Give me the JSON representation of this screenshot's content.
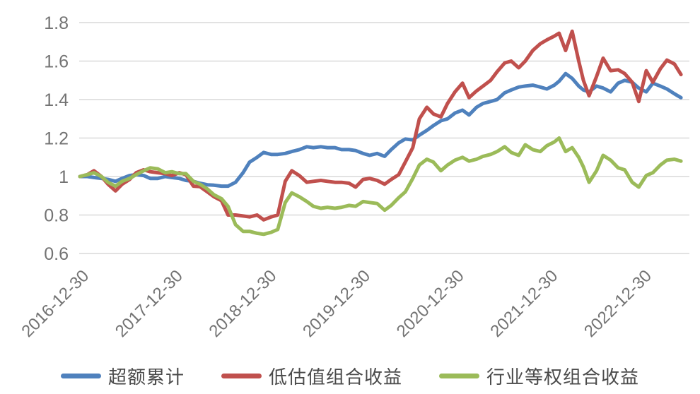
{
  "chart_data": {
    "type": "line",
    "title": "",
    "xlabel": "",
    "ylabel": "",
    "grid": true,
    "gridline_color": "#d9d9d9",
    "background_color": "#ffffff",
    "axis_text_color": "#737373",
    "legend_position": "bottom",
    "xlim": [
      2017.0,
      2023.5
    ],
    "ylim": [
      0.6,
      1.8
    ],
    "y_axis": {
      "ticks": [
        0.6,
        0.8,
        1.0,
        1.2,
        1.4,
        1.6,
        1.8
      ],
      "tick_labels": [
        "0.6",
        "0.8",
        "1",
        "1.2",
        "1.4",
        "1.6",
        "1.8"
      ]
    },
    "x_axis": {
      "tick_years": [
        2017,
        2018,
        2019,
        2020,
        2021,
        2022,
        2023
      ],
      "tick_labels": [
        "2016-12-30",
        "2017-12-30",
        "2018-12-30",
        "2019-12-30",
        "2020-12-30",
        "2021-12-30",
        "2022-12-30"
      ],
      "label_rotation_deg": -45
    },
    "series": [
      {
        "name": "超额累计",
        "color": "#4F81BD",
        "points": [
          [
            2017.0,
            1.0
          ],
          [
            2017.08,
            1.0
          ],
          [
            2017.15,
            0.995
          ],
          [
            2017.23,
            0.99
          ],
          [
            2017.3,
            0.985
          ],
          [
            2017.38,
            0.975
          ],
          [
            2017.45,
            0.99
          ],
          [
            2017.53,
            1.005
          ],
          [
            2017.6,
            1.01
          ],
          [
            2017.68,
            1.005
          ],
          [
            2017.75,
            0.99
          ],
          [
            2017.83,
            0.99
          ],
          [
            2017.91,
            1.0
          ],
          [
            2017.98,
            0.995
          ],
          [
            2018.06,
            0.99
          ],
          [
            2018.13,
            0.98
          ],
          [
            2018.21,
            0.975
          ],
          [
            2018.28,
            0.965
          ],
          [
            2018.36,
            0.957
          ],
          [
            2018.43,
            0.955
          ],
          [
            2018.51,
            0.95
          ],
          [
            2018.58,
            0.95
          ],
          [
            2018.66,
            0.97
          ],
          [
            2018.74,
            1.02
          ],
          [
            2018.81,
            1.075
          ],
          [
            2018.89,
            1.1
          ],
          [
            2018.96,
            1.125
          ],
          [
            2019.04,
            1.115
          ],
          [
            2019.11,
            1.115
          ],
          [
            2019.19,
            1.12
          ],
          [
            2019.26,
            1.13
          ],
          [
            2019.34,
            1.14
          ],
          [
            2019.42,
            1.155
          ],
          [
            2019.49,
            1.15
          ],
          [
            2019.57,
            1.155
          ],
          [
            2019.64,
            1.15
          ],
          [
            2019.72,
            1.15
          ],
          [
            2019.79,
            1.14
          ],
          [
            2019.87,
            1.14
          ],
          [
            2019.94,
            1.135
          ],
          [
            2020.02,
            1.12
          ],
          [
            2020.09,
            1.11
          ],
          [
            2020.17,
            1.12
          ],
          [
            2020.25,
            1.105
          ],
          [
            2020.32,
            1.14
          ],
          [
            2020.4,
            1.175
          ],
          [
            2020.47,
            1.195
          ],
          [
            2020.55,
            1.19
          ],
          [
            2020.62,
            1.215
          ],
          [
            2020.7,
            1.24
          ],
          [
            2020.77,
            1.265
          ],
          [
            2020.85,
            1.29
          ],
          [
            2020.92,
            1.3
          ],
          [
            2021.0,
            1.33
          ],
          [
            2021.08,
            1.345
          ],
          [
            2021.15,
            1.32
          ],
          [
            2021.23,
            1.36
          ],
          [
            2021.3,
            1.38
          ],
          [
            2021.38,
            1.39
          ],
          [
            2021.45,
            1.4
          ],
          [
            2021.53,
            1.435
          ],
          [
            2021.6,
            1.45
          ],
          [
            2021.68,
            1.465
          ],
          [
            2021.75,
            1.47
          ],
          [
            2021.83,
            1.475
          ],
          [
            2021.91,
            1.465
          ],
          [
            2021.98,
            1.455
          ],
          [
            2022.06,
            1.475
          ],
          [
            2022.11,
            1.495
          ],
          [
            2022.18,
            1.535
          ],
          [
            2022.25,
            1.51
          ],
          [
            2022.32,
            1.47
          ],
          [
            2022.37,
            1.45
          ],
          [
            2022.43,
            1.44
          ],
          [
            2022.51,
            1.47
          ],
          [
            2022.58,
            1.46
          ],
          [
            2022.66,
            1.44
          ],
          [
            2022.74,
            1.485
          ],
          [
            2022.81,
            1.5
          ],
          [
            2022.89,
            1.49
          ],
          [
            2022.96,
            1.46
          ],
          [
            2023.04,
            1.44
          ],
          [
            2023.11,
            1.485
          ],
          [
            2023.19,
            1.47
          ],
          [
            2023.26,
            1.455
          ],
          [
            2023.34,
            1.43
          ],
          [
            2023.41,
            1.41
          ]
        ]
      },
      {
        "name": "低估值组合收益",
        "color": "#C0504D",
        "points": [
          [
            2017.0,
            1.0
          ],
          [
            2017.08,
            1.01
          ],
          [
            2017.15,
            1.03
          ],
          [
            2017.23,
            1.0
          ],
          [
            2017.3,
            0.96
          ],
          [
            2017.38,
            0.925
          ],
          [
            2017.45,
            0.96
          ],
          [
            2017.53,
            0.985
          ],
          [
            2017.6,
            1.02
          ],
          [
            2017.68,
            1.035
          ],
          [
            2017.75,
            1.025
          ],
          [
            2017.83,
            1.02
          ],
          [
            2017.91,
            1.015
          ],
          [
            2017.98,
            1.005
          ],
          [
            2018.06,
            1.02
          ],
          [
            2018.13,
            1.01
          ],
          [
            2018.21,
            0.95
          ],
          [
            2018.28,
            0.948
          ],
          [
            2018.36,
            0.92
          ],
          [
            2018.43,
            0.895
          ],
          [
            2018.51,
            0.875
          ],
          [
            2018.58,
            0.8
          ],
          [
            2018.66,
            0.8
          ],
          [
            2018.74,
            0.795
          ],
          [
            2018.81,
            0.79
          ],
          [
            2018.89,
            0.8
          ],
          [
            2018.96,
            0.775
          ],
          [
            2019.04,
            0.79
          ],
          [
            2019.11,
            0.8
          ],
          [
            2019.19,
            0.975
          ],
          [
            2019.26,
            1.03
          ],
          [
            2019.34,
            1.005
          ],
          [
            2019.42,
            0.97
          ],
          [
            2019.49,
            0.975
          ],
          [
            2019.57,
            0.98
          ],
          [
            2019.64,
            0.975
          ],
          [
            2019.72,
            0.97
          ],
          [
            2019.79,
            0.97
          ],
          [
            2019.87,
            0.965
          ],
          [
            2019.94,
            0.945
          ],
          [
            2020.02,
            0.985
          ],
          [
            2020.09,
            0.99
          ],
          [
            2020.17,
            0.98
          ],
          [
            2020.25,
            0.96
          ],
          [
            2020.32,
            0.985
          ],
          [
            2020.4,
            1.01
          ],
          [
            2020.47,
            1.075
          ],
          [
            2020.55,
            1.15
          ],
          [
            2020.62,
            1.3
          ],
          [
            2020.7,
            1.36
          ],
          [
            2020.77,
            1.325
          ],
          [
            2020.85,
            1.31
          ],
          [
            2020.92,
            1.38
          ],
          [
            2021.0,
            1.44
          ],
          [
            2021.08,
            1.485
          ],
          [
            2021.15,
            1.41
          ],
          [
            2021.23,
            1.445
          ],
          [
            2021.3,
            1.47
          ],
          [
            2021.38,
            1.5
          ],
          [
            2021.45,
            1.545
          ],
          [
            2021.53,
            1.59
          ],
          [
            2021.6,
            1.6
          ],
          [
            2021.68,
            1.565
          ],
          [
            2021.75,
            1.6
          ],
          [
            2021.83,
            1.655
          ],
          [
            2021.91,
            1.69
          ],
          [
            2021.98,
            1.71
          ],
          [
            2022.06,
            1.73
          ],
          [
            2022.11,
            1.745
          ],
          [
            2022.18,
            1.655
          ],
          [
            2022.25,
            1.755
          ],
          [
            2022.32,
            1.6
          ],
          [
            2022.37,
            1.5
          ],
          [
            2022.43,
            1.42
          ],
          [
            2022.51,
            1.52
          ],
          [
            2022.58,
            1.615
          ],
          [
            2022.66,
            1.55
          ],
          [
            2022.74,
            1.555
          ],
          [
            2022.81,
            1.535
          ],
          [
            2022.89,
            1.49
          ],
          [
            2022.96,
            1.39
          ],
          [
            2023.04,
            1.55
          ],
          [
            2023.11,
            1.49
          ],
          [
            2023.19,
            1.56
          ],
          [
            2023.26,
            1.605
          ],
          [
            2023.34,
            1.585
          ],
          [
            2023.41,
            1.53
          ]
        ]
      },
      {
        "name": "行业等权组合收益",
        "color": "#9BBB59",
        "points": [
          [
            2017.0,
            1.0
          ],
          [
            2017.08,
            1.01
          ],
          [
            2017.15,
            1.02
          ],
          [
            2017.23,
            1.0
          ],
          [
            2017.3,
            0.97
          ],
          [
            2017.38,
            0.95
          ],
          [
            2017.45,
            0.975
          ],
          [
            2017.53,
            0.99
          ],
          [
            2017.6,
            1.01
          ],
          [
            2017.68,
            1.03
          ],
          [
            2017.75,
            1.045
          ],
          [
            2017.83,
            1.04
          ],
          [
            2017.91,
            1.02
          ],
          [
            2017.98,
            1.025
          ],
          [
            2018.06,
            1.015
          ],
          [
            2018.13,
            1.015
          ],
          [
            2018.21,
            0.975
          ],
          [
            2018.28,
            0.96
          ],
          [
            2018.36,
            0.935
          ],
          [
            2018.43,
            0.905
          ],
          [
            2018.51,
            0.885
          ],
          [
            2018.58,
            0.845
          ],
          [
            2018.66,
            0.75
          ],
          [
            2018.74,
            0.715
          ],
          [
            2018.81,
            0.715
          ],
          [
            2018.89,
            0.705
          ],
          [
            2018.96,
            0.7
          ],
          [
            2019.04,
            0.71
          ],
          [
            2019.11,
            0.725
          ],
          [
            2019.19,
            0.865
          ],
          [
            2019.26,
            0.915
          ],
          [
            2019.34,
            0.895
          ],
          [
            2019.42,
            0.87
          ],
          [
            2019.49,
            0.845
          ],
          [
            2019.57,
            0.835
          ],
          [
            2019.64,
            0.84
          ],
          [
            2019.72,
            0.835
          ],
          [
            2019.79,
            0.84
          ],
          [
            2019.87,
            0.85
          ],
          [
            2019.94,
            0.845
          ],
          [
            2020.02,
            0.87
          ],
          [
            2020.09,
            0.865
          ],
          [
            2020.17,
            0.86
          ],
          [
            2020.25,
            0.825
          ],
          [
            2020.32,
            0.85
          ],
          [
            2020.4,
            0.89
          ],
          [
            2020.47,
            0.92
          ],
          [
            2020.55,
            0.99
          ],
          [
            2020.62,
            1.06
          ],
          [
            2020.7,
            1.09
          ],
          [
            2020.77,
            1.075
          ],
          [
            2020.85,
            1.03
          ],
          [
            2020.92,
            1.06
          ],
          [
            2021.0,
            1.085
          ],
          [
            2021.08,
            1.1
          ],
          [
            2021.15,
            1.08
          ],
          [
            2021.23,
            1.09
          ],
          [
            2021.3,
            1.105
          ],
          [
            2021.38,
            1.115
          ],
          [
            2021.45,
            1.13
          ],
          [
            2021.53,
            1.155
          ],
          [
            2021.6,
            1.125
          ],
          [
            2021.68,
            1.11
          ],
          [
            2021.75,
            1.165
          ],
          [
            2021.83,
            1.14
          ],
          [
            2021.91,
            1.13
          ],
          [
            2021.98,
            1.16
          ],
          [
            2022.06,
            1.18
          ],
          [
            2022.11,
            1.2
          ],
          [
            2022.18,
            1.13
          ],
          [
            2022.25,
            1.15
          ],
          [
            2022.32,
            1.1
          ],
          [
            2022.37,
            1.05
          ],
          [
            2022.43,
            0.97
          ],
          [
            2022.51,
            1.03
          ],
          [
            2022.58,
            1.11
          ],
          [
            2022.66,
            1.085
          ],
          [
            2022.74,
            1.045
          ],
          [
            2022.81,
            1.035
          ],
          [
            2022.89,
            0.97
          ],
          [
            2022.96,
            0.945
          ],
          [
            2023.04,
            1.005
          ],
          [
            2023.11,
            1.02
          ],
          [
            2023.19,
            1.06
          ],
          [
            2023.26,
            1.085
          ],
          [
            2023.34,
            1.09
          ],
          [
            2023.41,
            1.08
          ]
        ]
      }
    ]
  }
}
